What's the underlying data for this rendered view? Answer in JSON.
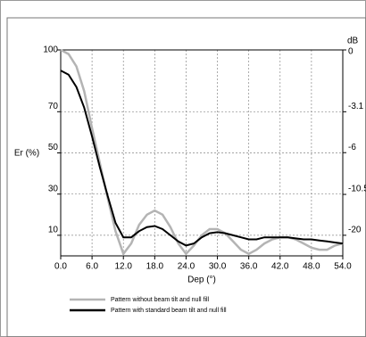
{
  "chart_data": {
    "type": "line",
    "ylabel": "Er (%)",
    "xlabel": "Dep (°)",
    "y2label": "dB",
    "x": [
      0,
      1.5,
      3,
      4.5,
      6,
      7.5,
      9,
      10.5,
      12,
      13.5,
      15,
      16.5,
      18,
      19.5,
      21,
      22.5,
      24,
      25.5,
      27,
      28.5,
      30,
      31.5,
      33,
      34.5,
      36,
      37.5,
      39,
      40.5,
      42,
      43.5,
      45,
      46.5,
      48,
      49.5,
      51,
      52.5,
      54
    ],
    "series": [
      {
        "name": "Pattern without beam tilt and null fill",
        "color": "#b4b4b4",
        "values": [
          100,
          98,
          92,
          80,
          62,
          45,
          28,
          12,
          1,
          6,
          15,
          20,
          22,
          20,
          14,
          6,
          1,
          5,
          10,
          13,
          13,
          11,
          7,
          3,
          1,
          3,
          6,
          8,
          9,
          9,
          8,
          6,
          4,
          3,
          3,
          5,
          6
        ]
      },
      {
        "name": "Pattern with standard beam tilt and null fill",
        "color": "#000000",
        "values": [
          90,
          88,
          82,
          72,
          58,
          43,
          29,
          16,
          9,
          9,
          12,
          14,
          14.5,
          13,
          10,
          7,
          5,
          6,
          9,
          11,
          11.5,
          11,
          10,
          9,
          8,
          8,
          9,
          9,
          9,
          9,
          8.5,
          8,
          8,
          7.5,
          7,
          6.5,
          6
        ]
      }
    ],
    "xlim": [
      0,
      54
    ],
    "xticks": [
      {
        "value": 0,
        "label": "0.0"
      },
      {
        "value": 6,
        "label": "6.0"
      },
      {
        "value": 12,
        "label": "12.0"
      },
      {
        "value": 18,
        "label": "18.0"
      },
      {
        "value": 24,
        "label": "24.0"
      },
      {
        "value": 30,
        "label": "30.0"
      },
      {
        "value": 36,
        "label": "36.0"
      },
      {
        "value": 42,
        "label": "42.0"
      },
      {
        "value": 48,
        "label": "48.0"
      },
      {
        "value": 54,
        "label": "54.0"
      }
    ],
    "ylim": [
      0,
      100
    ],
    "yticks": [
      10,
      30,
      50,
      70,
      100
    ],
    "y2scale": "db",
    "y2ticks": [
      0,
      -3.1,
      -6,
      -10.5,
      -20
    ],
    "grid": true
  }
}
